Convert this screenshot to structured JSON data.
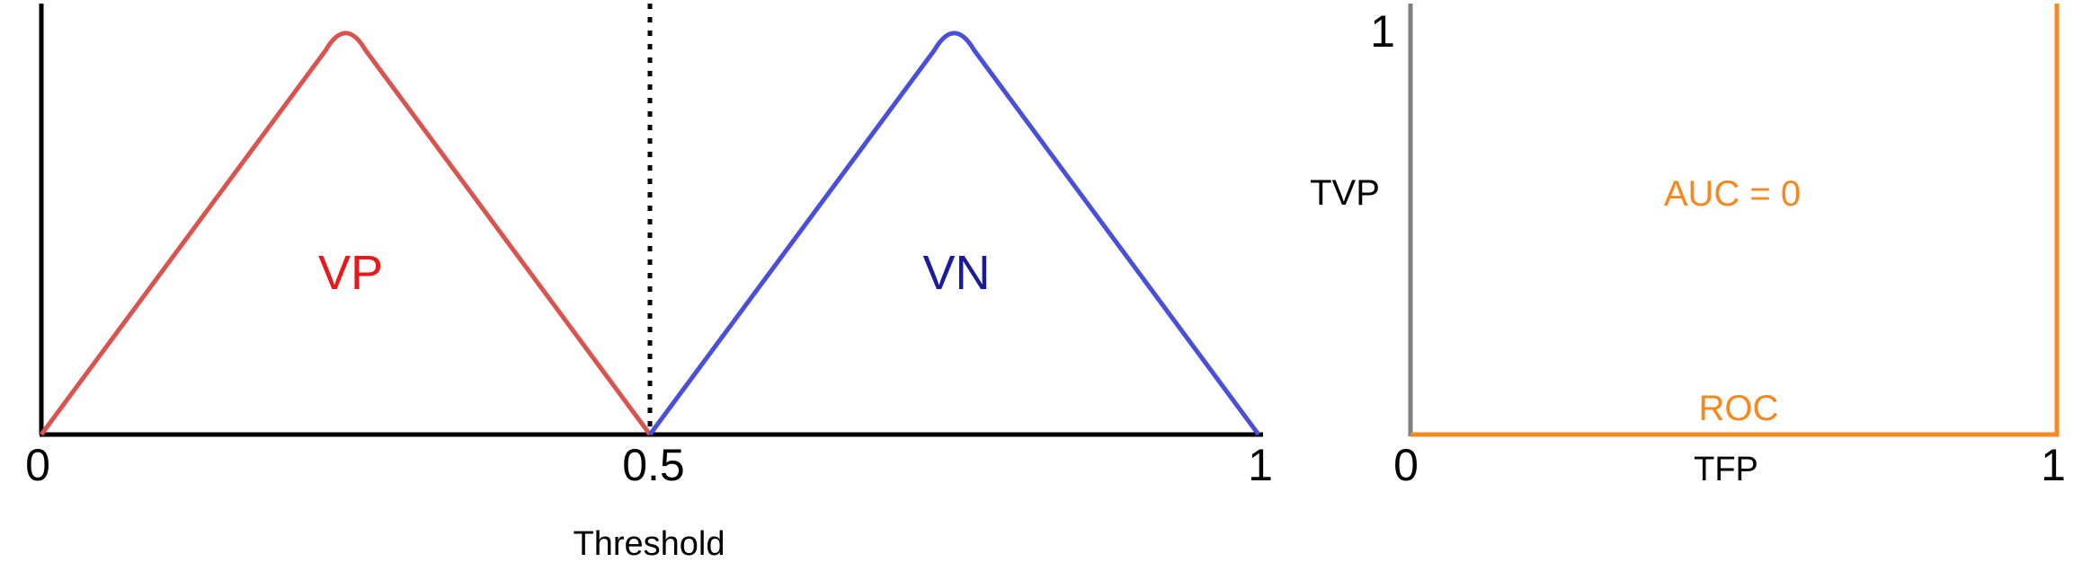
{
  "chart_data": [
    {
      "type": "line",
      "x_ticks": [
        "0",
        "0.5",
        "1"
      ],
      "xlabel": "Threshold",
      "xlim": [
        0,
        1
      ],
      "threshold": 0.5,
      "series": [
        {
          "name": "VP",
          "color": "#d9534f",
          "label_color": "#e8191b",
          "x": [
            0,
            0.25,
            0.5
          ],
          "y": [
            0,
            1,
            0
          ]
        },
        {
          "name": "VN",
          "color": "#4a4fd8",
          "label_color": "#1a1a9c",
          "x": [
            0.5,
            0.75,
            1
          ],
          "y": [
            0,
            1,
            0
          ]
        }
      ]
    },
    {
      "type": "line",
      "x_ticks": [
        "0",
        "1"
      ],
      "y_ticks": [
        "1"
      ],
      "xlabel": "TFP",
      "ylabel": "TVP",
      "xlim": [
        0,
        1
      ],
      "ylim": [
        0,
        1
      ],
      "annotation": "AUC = 0",
      "series": [
        {
          "name": "ROC",
          "color": "#f5891f",
          "x": [
            0,
            1,
            1
          ],
          "y": [
            0,
            0,
            1
          ]
        }
      ]
    }
  ]
}
